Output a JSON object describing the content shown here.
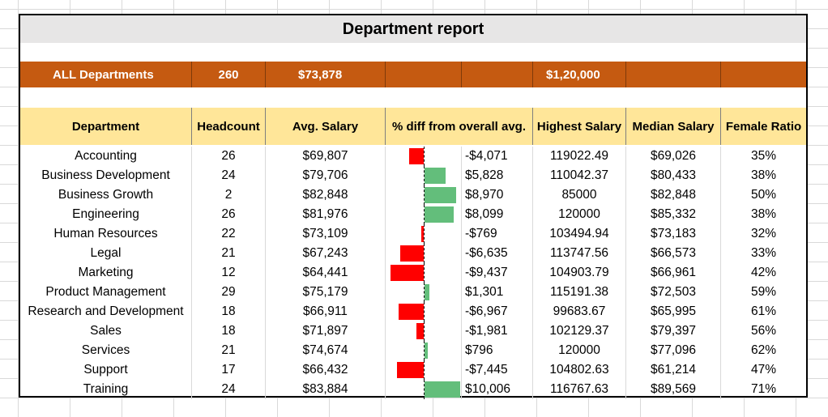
{
  "title": "Department report",
  "colors": {
    "title_bg": "#e7e6e6",
    "summary_bg": "#c55a11",
    "header_bg": "#ffe699",
    "negative_bar": "#ff0000",
    "positive_bar": "#63be7b"
  },
  "summary": {
    "label": "ALL Departments",
    "headcount": "260",
    "avg_salary": "$73,878",
    "diff": "",
    "diff_value": "",
    "highest_salary": "$1,20,000",
    "median_salary": "",
    "female_ratio": ""
  },
  "headers": {
    "department": "Department",
    "headcount": "Headcount",
    "avg_salary": "Avg. Salary",
    "pct_diff": "% diff from overall avg.",
    "highest_salary": "Highest Salary",
    "median_salary": "Median Salary",
    "female_ratio": "Female Ratio"
  },
  "rows": [
    {
      "department": "Accounting",
      "headcount": "26",
      "avg_salary": "$69,807",
      "diff": "-$4,071",
      "diff_num": -4071,
      "highest_salary": "119022.49",
      "median_salary": "$69,026",
      "female_ratio": "35%"
    },
    {
      "department": "Business Development",
      "headcount": "24",
      "avg_salary": "$79,706",
      "diff": "$5,828",
      "diff_num": 5828,
      "highest_salary": "110042.37",
      "median_salary": "$80,433",
      "female_ratio": "38%"
    },
    {
      "department": "Business Growth",
      "headcount": "2",
      "avg_salary": "$82,848",
      "diff": "$8,970",
      "diff_num": 8970,
      "highest_salary": "85000",
      "median_salary": "$82,848",
      "female_ratio": "50%"
    },
    {
      "department": "Engineering",
      "headcount": "26",
      "avg_salary": "$81,976",
      "diff": "$8,099",
      "diff_num": 8099,
      "highest_salary": "120000",
      "median_salary": "$85,332",
      "female_ratio": "38%"
    },
    {
      "department": "Human Resources",
      "headcount": "22",
      "avg_salary": "$73,109",
      "diff": "-$769",
      "diff_num": -769,
      "highest_salary": "103494.94",
      "median_salary": "$73,183",
      "female_ratio": "32%"
    },
    {
      "department": "Legal",
      "headcount": "21",
      "avg_salary": "$67,243",
      "diff": "-$6,635",
      "diff_num": -6635,
      "highest_salary": "113747.56",
      "median_salary": "$66,573",
      "female_ratio": "33%"
    },
    {
      "department": "Marketing",
      "headcount": "12",
      "avg_salary": "$64,441",
      "diff": "-$9,437",
      "diff_num": -9437,
      "highest_salary": "104903.79",
      "median_salary": "$66,961",
      "female_ratio": "42%"
    },
    {
      "department": "Product Management",
      "headcount": "29",
      "avg_salary": "$75,179",
      "diff": "$1,301",
      "diff_num": 1301,
      "highest_salary": "115191.38",
      "median_salary": "$72,503",
      "female_ratio": "59%"
    },
    {
      "department": "Research and Development",
      "headcount": "18",
      "avg_salary": "$66,911",
      "diff": "-$6,967",
      "diff_num": -6967,
      "highest_salary": "99683.67",
      "median_salary": "$65,995",
      "female_ratio": "61%"
    },
    {
      "department": "Sales",
      "headcount": "18",
      "avg_salary": "$71,897",
      "diff": "-$1,981",
      "diff_num": -1981,
      "highest_salary": "102129.37",
      "median_salary": "$79,397",
      "female_ratio": "56%"
    },
    {
      "department": "Services",
      "headcount": "21",
      "avg_salary": "$74,674",
      "diff": "$796",
      "diff_num": 796,
      "highest_salary": "120000",
      "median_salary": "$77,096",
      "female_ratio": "62%"
    },
    {
      "department": "Support",
      "headcount": "17",
      "avg_salary": "$66,432",
      "diff": "-$7,445",
      "diff_num": -7445,
      "highest_salary": "104802.63",
      "median_salary": "$61,214",
      "female_ratio": "47%"
    },
    {
      "department": "Training",
      "headcount": "24",
      "avg_salary": "$83,884",
      "diff": "$10,006",
      "diff_num": 10006,
      "highest_salary": "116767.63",
      "median_salary": "$89,569",
      "female_ratio": "71%"
    }
  ]
}
